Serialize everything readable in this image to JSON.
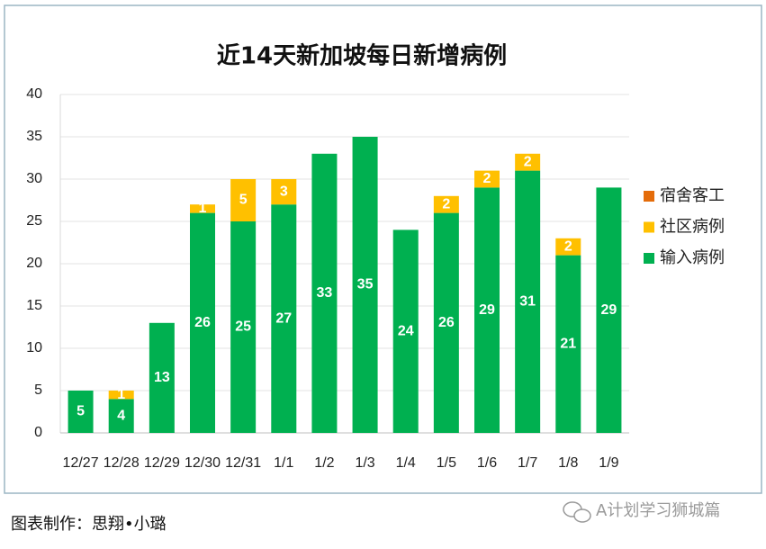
{
  "chart_data": {
    "type": "stacked_bar",
    "title": "近14天新加坡每日新增病例",
    "categories": [
      "12/27",
      "12/28",
      "12/29",
      "12/30",
      "12/31",
      "1/1",
      "1/2",
      "1/3",
      "1/4",
      "1/5",
      "1/6",
      "1/7",
      "1/8",
      "1/9"
    ],
    "series": [
      {
        "name": "输入病例",
        "color": "#00b050",
        "values": [
          5,
          4,
          13,
          26,
          25,
          27,
          33,
          35,
          24,
          26,
          29,
          31,
          21,
          29
        ]
      },
      {
        "name": "社区病例",
        "color": "#ffc000",
        "values": [
          0,
          1,
          0,
          1,
          5,
          3,
          0,
          0,
          0,
          2,
          2,
          2,
          2,
          0
        ]
      },
      {
        "name": "宿舍客工",
        "color": "#e46c0a",
        "values": [
          0,
          0,
          0,
          0,
          0,
          0,
          0,
          0,
          0,
          0,
          0,
          0,
          0,
          0
        ]
      }
    ],
    "ylim": [
      0,
      40
    ],
    "yticks": [
      0,
      5,
      10,
      15,
      20,
      25,
      30,
      35,
      40
    ],
    "grid": true,
    "legend": "right"
  },
  "footer": {
    "credit": "图表制作：思翔•小璐",
    "watermark": "A计划学习狮城篇"
  }
}
